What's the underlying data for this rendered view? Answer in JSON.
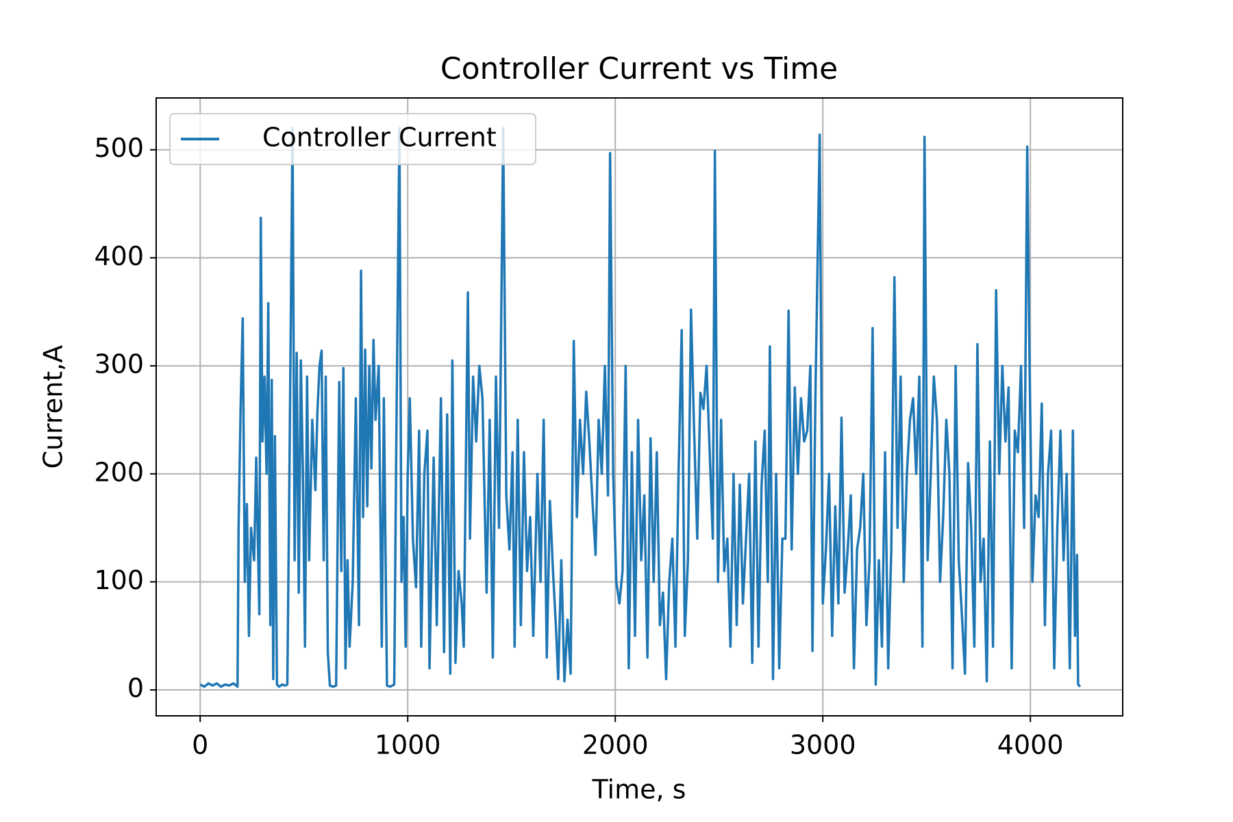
{
  "chart_data": {
    "type": "line",
    "title": "Controller Current vs Time",
    "x_label": "Time, s",
    "y_label": "Current,A",
    "xlim": [
      -212,
      4445
    ],
    "ylim": [
      -24,
      548
    ],
    "xticks": [
      0,
      1000,
      2000,
      3000,
      4000
    ],
    "yticks": [
      0,
      100,
      200,
      300,
      400,
      500
    ],
    "grid": true,
    "legend": "upper left",
    "x": [
      0,
      20,
      40,
      60,
      80,
      100,
      120,
      140,
      160,
      180,
      185,
      195,
      205,
      215,
      225,
      235,
      245,
      260,
      270,
      285,
      292,
      300,
      310,
      320,
      328,
      338,
      345,
      352,
      360,
      370,
      380,
      395,
      410,
      420,
      430,
      445,
      455,
      465,
      475,
      485,
      495,
      505,
      515,
      525,
      540,
      555,
      565,
      575,
      585,
      595,
      605,
      615,
      625,
      640,
      655,
      670,
      680,
      690,
      700,
      710,
      720,
      735,
      750,
      765,
      775,
      785,
      795,
      805,
      815,
      825,
      835,
      845,
      860,
      875,
      885,
      900,
      915,
      935,
      945,
      960,
      970,
      980,
      990,
      1000,
      1010,
      1025,
      1040,
      1055,
      1065,
      1080,
      1095,
      1105,
      1125,
      1140,
      1160,
      1175,
      1190,
      1205,
      1215,
      1230,
      1245,
      1260,
      1270,
      1285,
      1290,
      1300,
      1315,
      1330,
      1345,
      1360,
      1380,
      1395,
      1410,
      1425,
      1440,
      1460,
      1475,
      1490,
      1505,
      1515,
      1530,
      1545,
      1560,
      1575,
      1590,
      1605,
      1625,
      1640,
      1655,
      1670,
      1685,
      1700,
      1715,
      1725,
      1740,
      1755,
      1770,
      1785,
      1800,
      1815,
      1830,
      1845,
      1860,
      1875,
      1890,
      1905,
      1920,
      1935,
      1950,
      1965,
      1975,
      1990,
      2005,
      2020,
      2035,
      2050,
      2065,
      2080,
      2095,
      2110,
      2125,
      2140,
      2155,
      2170,
      2185,
      2200,
      2215,
      2230,
      2245,
      2260,
      2275,
      2290,
      2305,
      2320,
      2335,
      2350,
      2365,
      2380,
      2395,
      2410,
      2425,
      2440,
      2455,
      2470,
      2480,
      2495,
      2510,
      2525,
      2540,
      2555,
      2570,
      2585,
      2600,
      2615,
      2630,
      2645,
      2660,
      2675,
      2690,
      2705,
      2720,
      2735,
      2745,
      2760,
      2775,
      2790,
      2805,
      2820,
      2835,
      2850,
      2865,
      2880,
      2895,
      2910,
      2925,
      2940,
      2950,
      2965,
      2985,
      3000,
      3015,
      3030,
      3045,
      3060,
      3075,
      3090,
      3105,
      3120,
      3135,
      3150,
      3165,
      3180,
      3195,
      3210,
      3225,
      3240,
      3255,
      3270,
      3285,
      3300,
      3315,
      3330,
      3345,
      3360,
      3375,
      3390,
      3405,
      3420,
      3435,
      3450,
      3465,
      3480,
      3490,
      3505,
      3520,
      3535,
      3550,
      3565,
      3580,
      3595,
      3610,
      3625,
      3640,
      3655,
      3670,
      3685,
      3700,
      3715,
      3730,
      3745,
      3760,
      3775,
      3790,
      3805,
      3820,
      3835,
      3850,
      3865,
      3880,
      3895,
      3910,
      3925,
      3940,
      3955,
      3970,
      3985,
      3995,
      4010,
      4025,
      4040,
      4055,
      4070,
      4085,
      4100,
      4115,
      4130,
      4145,
      4160,
      4175,
      4190,
      4205,
      4215,
      4225,
      4230,
      4240
    ],
    "series": [
      {
        "name": "Controller Current",
        "color": "#1f77b4",
        "values": [
          5,
          3,
          6,
          4,
          6,
          3,
          5,
          4,
          6,
          3,
          150,
          262,
          344,
          100,
          172,
          50,
          150,
          120,
          215,
          70,
          437,
          230,
          290,
          200,
          358,
          60,
          287,
          10,
          235,
          5,
          3,
          5,
          4,
          5,
          200,
          520,
          120,
          312,
          90,
          305,
          200,
          40,
          290,
          120,
          250,
          185,
          258,
          300,
          314,
          120,
          290,
          35,
          4,
          3,
          4,
          285,
          110,
          298,
          20,
          120,
          40,
          100,
          270,
          60,
          388,
          160,
          315,
          170,
          300,
          205,
          324,
          250,
          300,
          40,
          270,
          4,
          3,
          5,
          230,
          520,
          100,
          160,
          40,
          200,
          270,
          140,
          95,
          240,
          40,
          200,
          240,
          20,
          215,
          60,
          270,
          35,
          255,
          15,
          305,
          25,
          110,
          80,
          40,
          290,
          368,
          140,
          290,
          230,
          300,
          270,
          90,
          250,
          30,
          290,
          150,
          520,
          180,
          130,
          220,
          40,
          250,
          60,
          220,
          110,
          160,
          50,
          200,
          100,
          250,
          30,
          175,
          110,
          55,
          10,
          120,
          8,
          65,
          15,
          323,
          160,
          250,
          200,
          276,
          230,
          175,
          125,
          250,
          200,
          300,
          180,
          497,
          200,
          100,
          80,
          110,
          300,
          20,
          220,
          50,
          250,
          120,
          180,
          30,
          233,
          100,
          220,
          60,
          90,
          10,
          100,
          140,
          40,
          200,
          333,
          50,
          120,
          352,
          240,
          140,
          275,
          260,
          300,
          220,
          140,
          499,
          100,
          250,
          110,
          140,
          40,
          200,
          60,
          190,
          80,
          140,
          200,
          25,
          230,
          40,
          190,
          240,
          100,
          318,
          10,
          200,
          20,
          140,
          140,
          351,
          130,
          280,
          200,
          270,
          230,
          240,
          300,
          36,
          280,
          514,
          80,
          130,
          200,
          50,
          170,
          80,
          252,
          90,
          130,
          180,
          20,
          130,
          150,
          200,
          60,
          120,
          335,
          5,
          120,
          40,
          220,
          20,
          130,
          382,
          150,
          290,
          100,
          200,
          250,
          270,
          200,
          290,
          40,
          512,
          120,
          200,
          290,
          250,
          100,
          160,
          250,
          200,
          20,
          300,
          120,
          70,
          15,
          210,
          150,
          40,
          320,
          100,
          140,
          8,
          230,
          40,
          370,
          200,
          300,
          230,
          280,
          20,
          240,
          220,
          300,
          150,
          503,
          320,
          100,
          180,
          160,
          265,
          60,
          200,
          240,
          20,
          150,
          240,
          120,
          200,
          20,
          240,
          50,
          125,
          5,
          3
        ]
      }
    ]
  }
}
